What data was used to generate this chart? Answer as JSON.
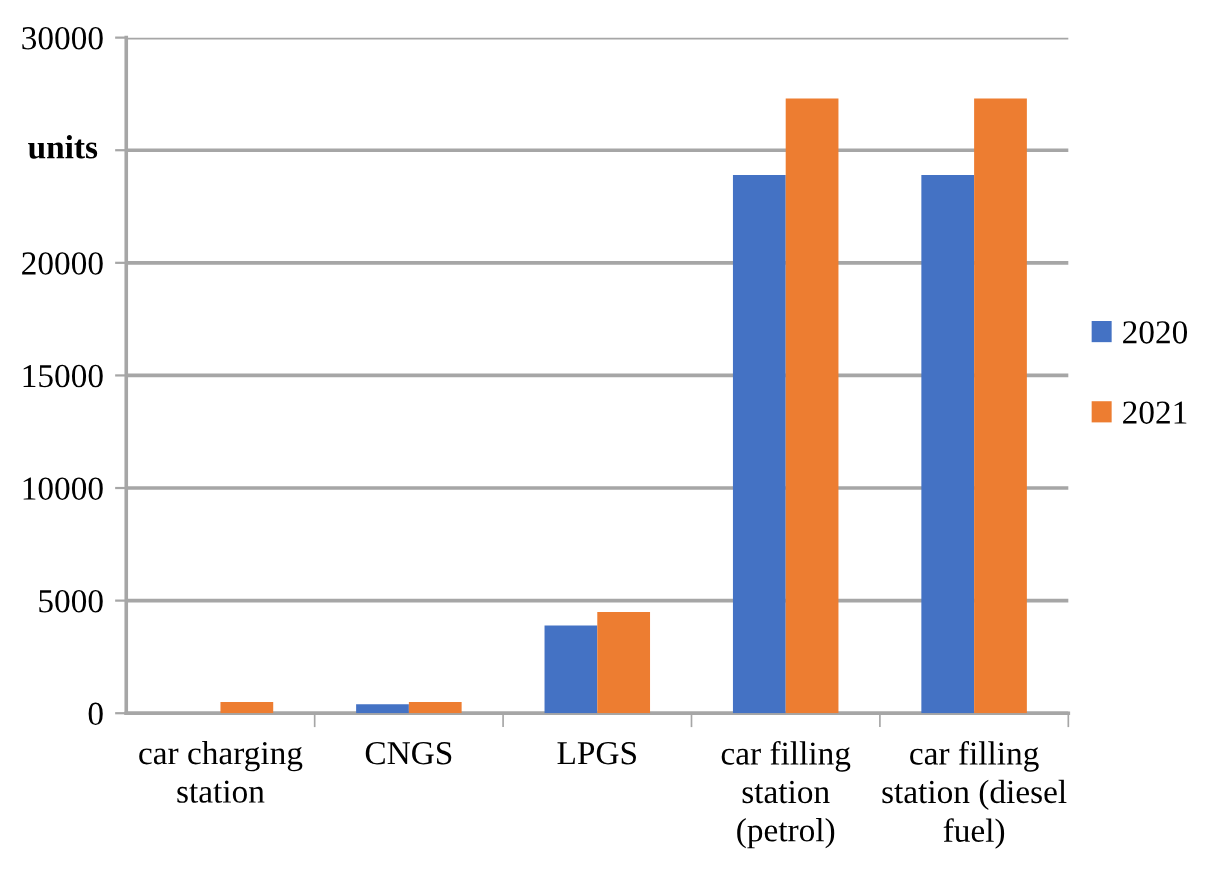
{
  "chart_data": {
    "type": "bar",
    "categories": [
      "car charging station",
      "CNGS",
      "LPGS",
      "car filling station (petrol)",
      "car filling station (diesel fuel)"
    ],
    "series": [
      {
        "name": "2020",
        "color": "#4472c4",
        "values": [
          0,
          400,
          3900,
          23900,
          23900
        ]
      },
      {
        "name": "2021",
        "color": "#ed7d31",
        "values": [
          500,
          500,
          4500,
          27300,
          27300
        ]
      }
    ],
    "ylabel": "units",
    "ylim": [
      0,
      30000
    ],
    "yticks": [
      0,
      5000,
      10000,
      15000,
      20000,
      {
        "value": 25000,
        "label": null
      },
      30000
    ],
    "grid": "y",
    "legend": "right"
  }
}
